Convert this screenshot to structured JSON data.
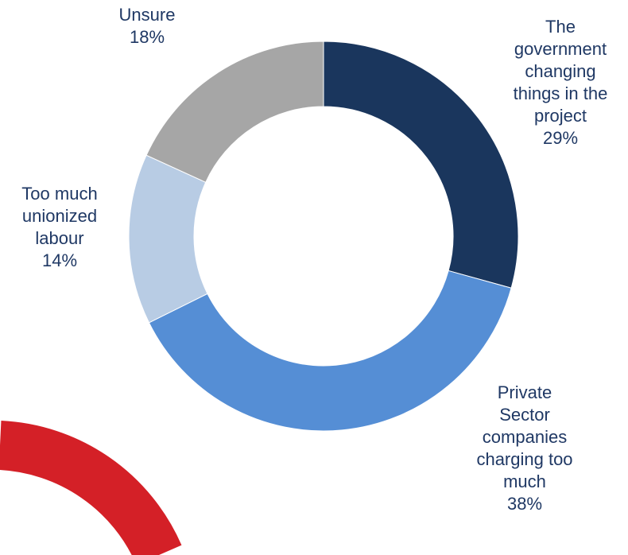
{
  "chart_data": {
    "type": "pie",
    "variant": "donut",
    "slices": [
      {
        "id": "gov",
        "label_lines": [
          "The",
          "government",
          "changing",
          "things in the",
          "project"
        ],
        "percent_label": "29%",
        "value": 29,
        "color": "#1a365d"
      },
      {
        "id": "private",
        "label_lines": [
          "Private",
          "Sector",
          "companies",
          "charging too",
          "much"
        ],
        "percent_label": "38%",
        "value": 38,
        "color": "#558ed5"
      },
      {
        "id": "union",
        "label_lines": [
          "Too much",
          "unionized",
          "labour"
        ],
        "percent_label": "14%",
        "value": 14,
        "color": "#b8cce4"
      },
      {
        "id": "unsure",
        "label_lines": [
          "Unsure"
        ],
        "percent_label": "18%",
        "value": 18,
        "color": "#a6a6a6"
      }
    ],
    "start_angle_deg": 0,
    "direction": "clockwise",
    "legend": "none"
  },
  "decoration": {
    "ring_color": "#d42027"
  }
}
